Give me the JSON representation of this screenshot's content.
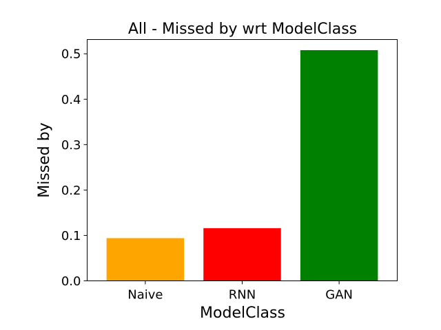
{
  "chart_data": {
    "type": "bar",
    "title": "All - Missed by wrt ModelClass",
    "xlabel": "ModelClass",
    "ylabel": "Missed by",
    "categories": [
      "Naive",
      "RNN",
      "GAN"
    ],
    "values": [
      0.094,
      0.116,
      0.508
    ],
    "colors": [
      "#FFA500",
      "#FF0000",
      "#008000"
    ],
    "ylim": [
      0,
      0.5314
    ],
    "yticks": [
      0.0,
      0.1,
      0.2,
      0.3,
      0.4,
      0.5
    ],
    "ytick_labels": [
      "0.0",
      "0.1",
      "0.2",
      "0.3",
      "0.4",
      "0.5"
    ],
    "grid": false,
    "legend": false
  }
}
